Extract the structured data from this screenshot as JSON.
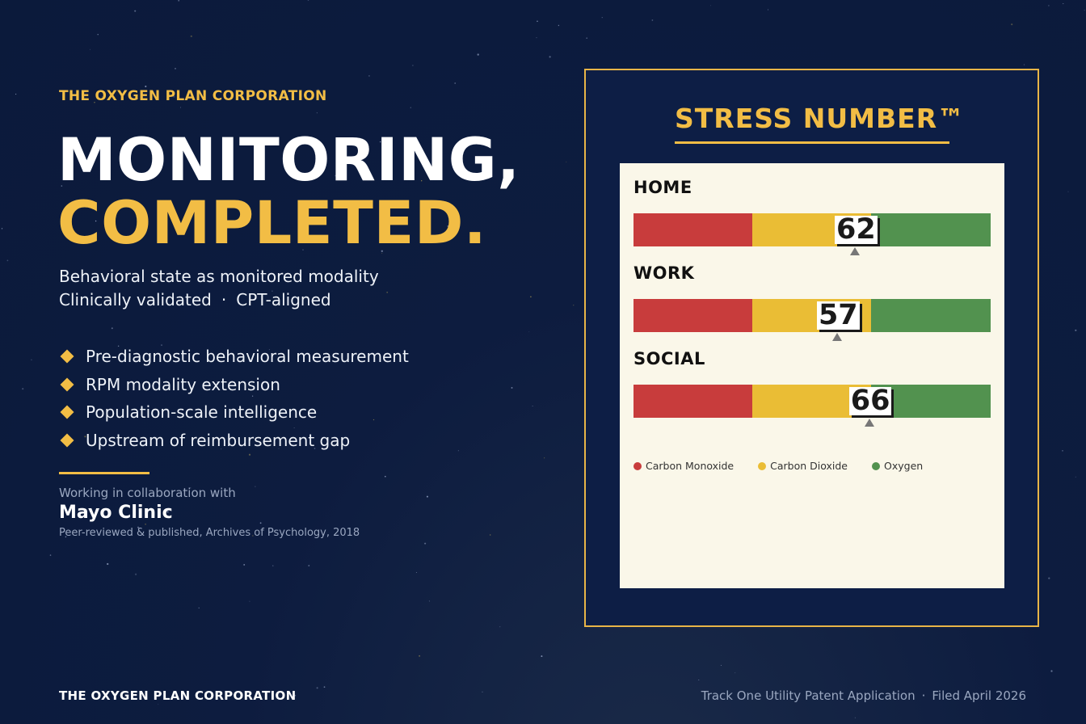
{
  "brand": {
    "eyebrow": "THE OXYGEN PLAN CORPORATION",
    "accent_color": "#f2bd45",
    "background_color": "#0b1a3b"
  },
  "hero": {
    "line1": "MONITORING,",
    "line2": "COMPLETED."
  },
  "subtitle": {
    "line1": "Behavioral state as monitored modality",
    "line2_part1": "Clinically validated",
    "line2_sep": "·",
    "line2_part2": "CPT-aligned"
  },
  "bullets": [
    "Pre-diagnostic behavioral measurement",
    "RPM modality extension",
    "Population-scale intelligence",
    "Upstream of reimbursement gap"
  ],
  "collaboration": {
    "label": "Working in collaboration with",
    "name": "Mayo Clinic",
    "note": "Peer-reviewed & published, Archives of Psychology, 2018"
  },
  "footer": {
    "left": "THE OXYGEN PLAN CORPORATION",
    "right_part1": "Track One Utility Patent Application",
    "right_sep": "·",
    "right_part2": "Filed April 2026"
  },
  "panel": {
    "title": "STRESS NUMBER™"
  },
  "chart_data": {
    "type": "bar",
    "scale": [
      0,
      100
    ],
    "zones": [
      {
        "name": "Carbon Monoxide",
        "from": 0,
        "to": 33.3,
        "color": "#c83c3c"
      },
      {
        "name": "Carbon Dioxide",
        "from": 33.3,
        "to": 66.7,
        "color": "#eabd35"
      },
      {
        "name": "Oxygen",
        "from": 66.7,
        "to": 100,
        "color": "#52924f"
      }
    ],
    "categories": [
      "HOME",
      "WORK",
      "SOCIAL"
    ],
    "values": [
      62,
      57,
      66
    ],
    "legend_position": "bottom-left"
  }
}
